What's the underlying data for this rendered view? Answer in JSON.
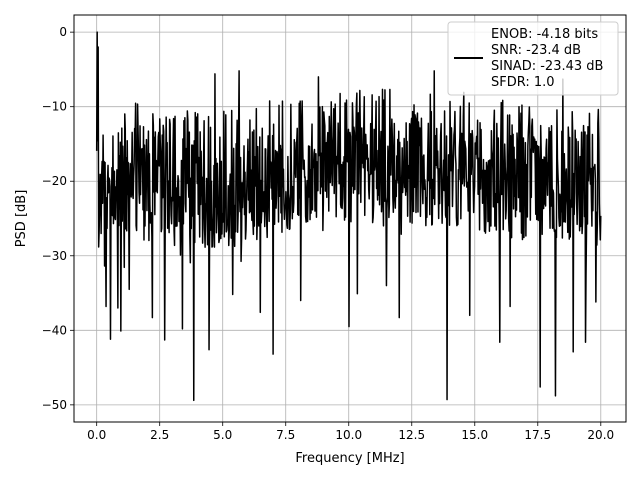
{
  "chart_data": {
    "type": "line",
    "title": "",
    "xlabel": "Frequency [MHz]",
    "ylabel": "PSD [dB]",
    "xlim": [
      -0.9,
      21.0
    ],
    "ylim": [
      -52.3,
      2.3
    ],
    "xticks": [
      0.0,
      2.5,
      5.0,
      7.5,
      10.0,
      12.5,
      15.0,
      17.5,
      20.0
    ],
    "xtick_labels": [
      "0.0",
      "2.5",
      "5.0",
      "7.5",
      "10.0",
      "12.5",
      "15.0",
      "17.5",
      "20.0"
    ],
    "yticks": [
      0,
      -10,
      -20,
      -30,
      -40,
      -50
    ],
    "ytick_labels": [
      "0",
      "−10",
      "−20",
      "−30",
      "−40",
      "−50"
    ],
    "grid": true,
    "legend_position": "top-right",
    "legend_lines": [
      "ENOB: -4.18 bits",
      "SNR: -23.4 dB",
      "SINAD: -23.43 dB",
      "SFDR: 1.0"
    ],
    "series": [
      {
        "color": "#000000",
        "x_range": [
          0.0,
          20.0
        ],
        "points": 1024,
        "band_top_db": [
          -12,
          -9,
          -10,
          -10,
          -9,
          -8,
          -7,
          -8,
          -8,
          -9,
          -10,
          -10
        ],
        "band_bottom_db": [
          -27,
          -28,
          -29,
          -29,
          -27,
          -25,
          -26,
          -26,
          -26,
          -28,
          -28,
          -29
        ],
        "dips": [
          [
            0.38,
            -36.8
          ],
          [
            0.55,
            -41.2
          ],
          [
            0.85,
            -37.0
          ],
          [
            0.95,
            -40.1
          ],
          [
            1.3,
            -34.5
          ],
          [
            2.2,
            -38.3
          ],
          [
            2.7,
            -41.3
          ],
          [
            3.4,
            -39.8
          ],
          [
            3.85,
            -49.4
          ],
          [
            4.45,
            -42.6
          ],
          [
            5.4,
            -35.2
          ],
          [
            6.5,
            -37.6
          ],
          [
            7.0,
            -43.2
          ],
          [
            8.1,
            -36.0
          ],
          [
            10.0,
            -39.5
          ],
          [
            10.35,
            -35.1
          ],
          [
            11.5,
            -34.0
          ],
          [
            12.0,
            -38.3
          ],
          [
            13.9,
            -49.3
          ],
          [
            14.8,
            -38.0
          ],
          [
            16.0,
            -41.6
          ],
          [
            16.4,
            -36.8
          ],
          [
            17.6,
            -47.6
          ],
          [
            18.2,
            -48.8
          ],
          [
            18.9,
            -42.9
          ],
          [
            19.4,
            -41.6
          ],
          [
            19.8,
            -36.2
          ]
        ],
        "peaks": [
          [
            0.02,
            0.0
          ],
          [
            0.05,
            -2.0
          ],
          [
            4.7,
            -5.6
          ],
          [
            5.65,
            -5.2
          ],
          [
            8.8,
            -6.0
          ],
          [
            13.4,
            -5.2
          ],
          [
            18.5,
            -6.3
          ]
        ]
      }
    ]
  }
}
